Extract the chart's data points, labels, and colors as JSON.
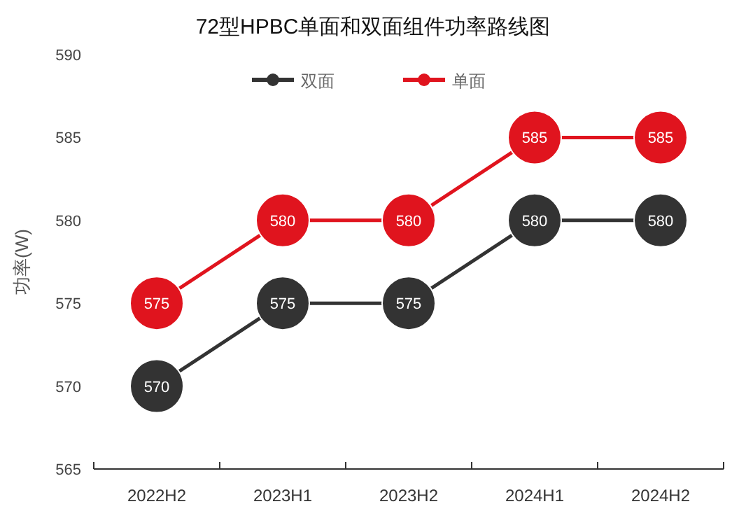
{
  "chart_data": {
    "type": "line",
    "title": "72型HPBC单面和双面组件功率路线图",
    "ylabel": "功率(W)",
    "categories": [
      "2022H2",
      "2023H1",
      "2023H2",
      "2024H1",
      "2024H2"
    ],
    "series": [
      {
        "name": "双面",
        "color": "#333333",
        "values": [
          570,
          575,
          575,
          580,
          580
        ]
      },
      {
        "name": "单面",
        "color": "#e0141e",
        "values": [
          575,
          580,
          580,
          585,
          585
        ]
      }
    ],
    "ylim": [
      565,
      590
    ],
    "yticks": [
      565,
      570,
      575,
      580,
      585,
      590
    ],
    "grid": false,
    "legend": "top",
    "marker": "circle",
    "data_labels": true
  }
}
